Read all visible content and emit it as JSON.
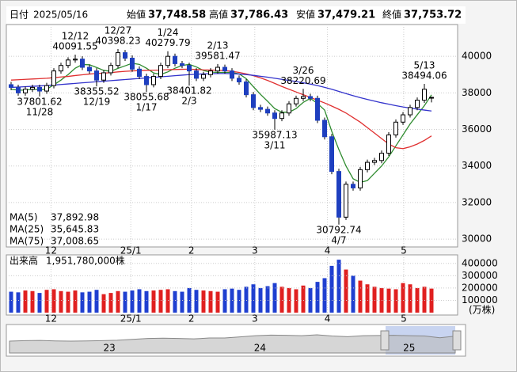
{
  "chart_data": {
    "type": "candlestick",
    "header": {
      "date_label": "日付",
      "date": "2025/05/16",
      "fields": [
        {
          "label": "始値",
          "value": "37,748.58",
          "color": "#000000"
        },
        {
          "label": "高値",
          "value": "37,786.43",
          "color": "#d00000"
        },
        {
          "label": "安値",
          "value": "37,479.21",
          "color": "#008000"
        },
        {
          "label": "終値",
          "value": "37,753.72",
          "color": "#000000"
        }
      ]
    },
    "open": [
      38450,
      38300,
      38000,
      38200,
      38300,
      38100,
      38400,
      39200,
      39500,
      39800,
      39850,
      39400,
      39200,
      38700,
      39100,
      39500,
      40200,
      39900,
      39300,
      38900,
      38450,
      38900,
      39500,
      40000,
      39600,
      39500,
      39200,
      38800,
      39000,
      39200,
      39400,
      39200,
      38800,
      38600,
      37900,
      37200,
      37100,
      36900,
      36600,
      36900,
      37400,
      37700,
      37800,
      37700,
      36500,
      35600,
      33700,
      31200,
      33000,
      32800,
      33800,
      34200,
      34300,
      34700,
      35700,
      36400,
      36800,
      37200,
      37600,
      37748.58
    ],
    "high": [
      38600,
      38450,
      38350,
      38450,
      38450,
      38550,
      39350,
      39650,
      39950,
      40091.55,
      40000,
      39550,
      39350,
      39250,
      39650,
      40398.23,
      40350,
      40050,
      39450,
      39050,
      39050,
      39650,
      40279.79,
      40150,
      39750,
      39650,
      39350,
      39150,
      39350,
      39581.47,
      39550,
      39350,
      38950,
      38750,
      38050,
      37350,
      37250,
      37050,
      37050,
      37550,
      37850,
      38220.69,
      37950,
      37850,
      36650,
      35750,
      33850,
      33150,
      33150,
      33950,
      34350,
      34450,
      34850,
      35850,
      36550,
      36950,
      37350,
      37750,
      38494.06,
      37786.43
    ],
    "low": [
      38150,
      37850,
      37850,
      38050,
      37801.62,
      37950,
      38250,
      39050,
      39350,
      39650,
      39250,
      39050,
      38355.52,
      38550,
      38950,
      39350,
      39750,
      39150,
      38750,
      38055.68,
      38300,
      38750,
      39350,
      39450,
      39350,
      38401.82,
      38650,
      38650,
      38850,
      39050,
      39050,
      38650,
      38450,
      37750,
      37050,
      36950,
      36750,
      35987.13,
      36450,
      36750,
      37250,
      37550,
      37550,
      36350,
      35450,
      33550,
      30792.74,
      31050,
      32650,
      32650,
      33650,
      34050,
      34150,
      34550,
      35550,
      36250,
      36650,
      37050,
      37450,
      37479.21
    ],
    "close": [
      38300,
      38000,
      38200,
      38300,
      38100,
      38400,
      39200,
      39500,
      39800,
      39850,
      39400,
      39200,
      38700,
      39100,
      39500,
      40200,
      39900,
      39300,
      38900,
      38450,
      38900,
      39500,
      40000,
      39600,
      39500,
      39200,
      38800,
      39000,
      39200,
      39400,
      39200,
      38800,
      38600,
      37900,
      37200,
      37100,
      36900,
      36600,
      36900,
      37400,
      37700,
      37800,
      37700,
      36500,
      35600,
      33700,
      31200,
      33000,
      32800,
      33800,
      34200,
      34300,
      34700,
      35700,
      36400,
      36800,
      37200,
      37600,
      38200,
      37753.72
    ],
    "up_color": "#ffffff",
    "down_color": "#1e3fbf",
    "ylim": [
      29570,
      41740
    ],
    "yticks": [
      30000,
      32000,
      34000,
      36000,
      38000,
      40000
    ],
    "xticks": [
      {
        "value": 5.6,
        "label": "12"
      },
      {
        "value": 16.8,
        "label": "25/1"
      },
      {
        "value": 25.3,
        "label": "2"
      },
      {
        "value": 34.2,
        "label": "3"
      },
      {
        "value": 44.4,
        "label": "4"
      },
      {
        "value": 55.1,
        "label": "5"
      }
    ],
    "grid": true,
    "ma": [
      {
        "name": "MA(5)",
        "color": "#2e8b2e",
        "last_label": "37,892.98",
        "values": [
          38200,
          38150,
          38150,
          38200,
          38180,
          38200,
          38440,
          38700,
          39000,
          39350,
          39550,
          39540,
          39390,
          39230,
          39180,
          39340,
          39480,
          39620,
          39560,
          39350,
          39090,
          39010,
          39150,
          39350,
          39500,
          39560,
          39420,
          39220,
          39140,
          39120,
          39120,
          39120,
          39040,
          38780,
          38340,
          37920,
          37540,
          37140,
          36940,
          36940,
          37140,
          37480,
          37700,
          37420,
          37060,
          35900,
          34900,
          34000,
          33300,
          33100,
          33200,
          33600,
          34000,
          34500,
          35100,
          35700,
          36300,
          36800,
          37300,
          37892.98
        ]
      },
      {
        "name": "MA(25)",
        "color": "#e03030",
        "last_label": "35,645.83",
        "values": [
          38700,
          38720,
          38740,
          38760,
          38780,
          38800,
          38830,
          38870,
          38900,
          38950,
          38990,
          39030,
          39060,
          39080,
          39110,
          39150,
          39180,
          39200,
          39220,
          39230,
          39240,
          39250,
          39270,
          39280,
          39290,
          39300,
          39280,
          39260,
          39250,
          39240,
          39220,
          39180,
          39120,
          39040,
          38940,
          38820,
          38680,
          38520,
          38350,
          38200,
          38050,
          37900,
          37750,
          37600,
          37450,
          37280,
          37100,
          36900,
          36650,
          36400,
          36100,
          35800,
          35500,
          35200,
          35000,
          34950,
          35050,
          35200,
          35400,
          35645.83
        ]
      },
      {
        "name": "MA(75)",
        "color": "#3333cc",
        "last_label": "37,008.65",
        "values": [
          38300,
          38320,
          38340,
          38360,
          38380,
          38400,
          38430,
          38460,
          38490,
          38520,
          38550,
          38580,
          38610,
          38640,
          38670,
          38700,
          38730,
          38760,
          38790,
          38820,
          38850,
          38880,
          38910,
          38940,
          38970,
          39000,
          39020,
          39040,
          39050,
          39060,
          39060,
          39050,
          39030,
          39000,
          38960,
          38910,
          38860,
          38800,
          38740,
          38680,
          38620,
          38550,
          38480,
          38400,
          38300,
          38200,
          38080,
          37960,
          37850,
          37740,
          37640,
          37550,
          37460,
          37380,
          37300,
          37230,
          37170,
          37110,
          37060,
          37008.65
        ]
      }
    ],
    "annotations": [
      {
        "index": 4,
        "kind": "low",
        "date": "11/28",
        "value": 37801.62
      },
      {
        "index": 9,
        "kind": "high",
        "date": "12/12",
        "value": 40091.55
      },
      {
        "index": 12,
        "kind": "low",
        "date": "12/19",
        "value": 38355.52
      },
      {
        "index": 15,
        "kind": "high",
        "date": "12/27",
        "value": 40398.23
      },
      {
        "index": 19,
        "kind": "low",
        "date": "1/17",
        "value": 38055.68
      },
      {
        "index": 22,
        "kind": "high",
        "date": "1/24",
        "value": 40279.79
      },
      {
        "index": 25,
        "kind": "low",
        "date": "2/3",
        "value": 38401.82
      },
      {
        "index": 29,
        "kind": "high",
        "date": "2/13",
        "value": 39581.47
      },
      {
        "index": 37,
        "kind": "low",
        "date": "3/11",
        "value": 35987.13
      },
      {
        "index": 41,
        "kind": "high",
        "date": "3/26",
        "value": 38220.69
      },
      {
        "index": 46,
        "kind": "low",
        "date": "4/7",
        "value": 30792.74
      },
      {
        "index": 58,
        "kind": "high",
        "date": "5/13",
        "value": 38494.06
      }
    ],
    "volume": {
      "title": "出来高",
      "last_label": "1,951,780,000株",
      "unit": "(万株)",
      "up_color": "#e02020",
      "down_color": "#1f3fd0",
      "ylim": [
        0,
        450000
      ],
      "yticks": [
        100000,
        200000,
        300000,
        400000
      ],
      "values": [
        170000,
        165000,
        180000,
        175000,
        160000,
        185000,
        190000,
        175000,
        170000,
        180000,
        165000,
        170000,
        185000,
        150000,
        160000,
        175000,
        170000,
        180000,
        190000,
        175000,
        180000,
        185000,
        190000,
        175000,
        170000,
        200000,
        185000,
        180000,
        175000,
        170000,
        190000,
        195000,
        185000,
        210000,
        230000,
        200000,
        215000,
        240000,
        210000,
        200000,
        190000,
        220000,
        200000,
        250000,
        280000,
        380000,
        430000,
        350000,
        300000,
        260000,
        230000,
        210000,
        200000,
        195000,
        190000,
        240000,
        230000,
        200000,
        210000,
        195178
      ]
    },
    "navigator": {
      "ylim": [
        0,
        60000
      ],
      "xticks": [
        {
          "value": 6.5,
          "label": "23"
        },
        {
          "value": 16.3,
          "label": "24"
        },
        {
          "value": 26,
          "label": "25"
        }
      ],
      "values": [
        26500,
        27500,
        28000,
        27000,
        26500,
        27000,
        27500,
        28500,
        30500,
        32500,
        33000,
        32500,
        31500,
        33500,
        33500,
        36000,
        38500,
        40000,
        39500,
        38500,
        40500,
        38000,
        36500,
        38500,
        39000,
        39500,
        38500,
        38000,
        34000,
        37700
      ]
    }
  }
}
